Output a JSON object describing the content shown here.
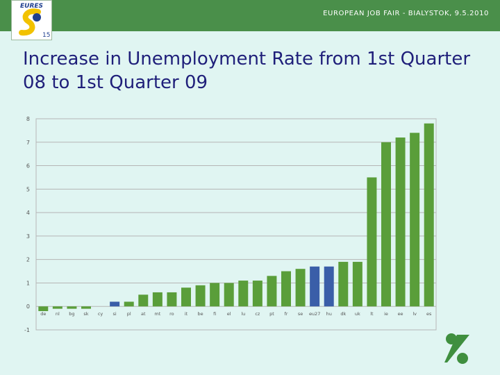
{
  "header": {
    "text": "EUROPEAN JOB FAIR - BIALYSTOK, 9.5.2010",
    "logo_text": "EURES"
  },
  "slide": {
    "title": "Increase in Unemployment Rate from 1st Quarter 08 to 1st Quarter 09"
  },
  "colors": {
    "header": "#4a8f4a",
    "background": "#e0f5f2",
    "bar_default": "#5a9e3a",
    "bar_highlight": "#3a5ea8",
    "title": "#1f1f7a"
  },
  "chart_data": {
    "type": "bar",
    "title": "",
    "xlabel": "",
    "ylabel": "",
    "ylim": [
      -1,
      8
    ],
    "yticks": [
      -1,
      0,
      1,
      2,
      3,
      4,
      5,
      6,
      7,
      8
    ],
    "grid": true,
    "categories": [
      "de",
      "nl",
      "bg",
      "sk",
      "cy",
      "si",
      "pl",
      "at",
      "mt",
      "ro",
      "it",
      "be",
      "fi",
      "el",
      "lu",
      "cz",
      "pt",
      "fr",
      "se",
      "eu27",
      "hu",
      "dk",
      "uk",
      "lt",
      "ie",
      "ee",
      "lv",
      "es"
    ],
    "values": [
      -0.2,
      -0.1,
      -0.1,
      -0.1,
      0.0,
      0.2,
      0.2,
      0.5,
      0.6,
      0.6,
      0.8,
      0.9,
      1.0,
      1.0,
      1.1,
      1.1,
      1.3,
      1.5,
      1.6,
      1.7,
      1.7,
      1.9,
      1.9,
      5.5,
      7.0,
      7.2,
      7.4,
      7.8
    ],
    "highlight": [
      "si",
      "eu27",
      "hu"
    ]
  }
}
